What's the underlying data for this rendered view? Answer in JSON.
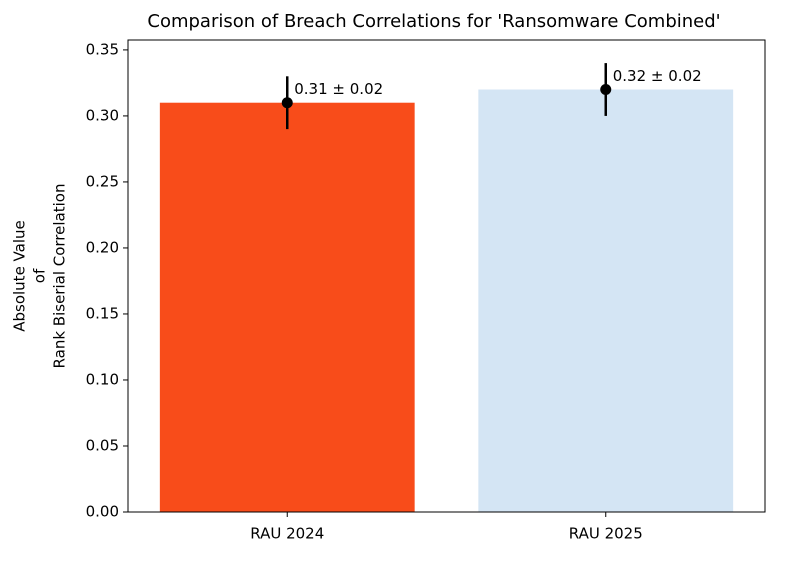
{
  "chart_data": {
    "type": "bar",
    "title": "Comparison of Breach Correlations for 'Ransomware Combined'",
    "ylabel": [
      "Absolute Value",
      "of",
      "Rank Biserial Correlation"
    ],
    "categories": [
      "RAU 2024",
      "RAU 2025"
    ],
    "values": [
      0.31,
      0.32
    ],
    "errors": [
      0.02,
      0.02
    ],
    "value_labels": [
      "0.31 ± 0.02",
      "0.32 ± 0.02"
    ],
    "colors": [
      "#f84c1a",
      "#d4e5f4"
    ],
    "ylim": [
      0,
      0.3575
    ],
    "yticks": [
      {
        "value": 0,
        "label": "0.00"
      },
      {
        "value": 0.05,
        "label": "0.05"
      },
      {
        "value": 0.1,
        "label": "0.10"
      },
      {
        "value": 0.15,
        "label": "0.15"
      },
      {
        "value": 0.2,
        "label": "0.20"
      },
      {
        "value": 0.25,
        "label": "0.25"
      },
      {
        "value": 0.3,
        "label": "0.30"
      },
      {
        "value": 0.35,
        "label": "0.35"
      }
    ]
  }
}
